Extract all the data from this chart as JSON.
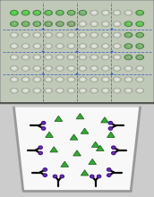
{
  "fig_width": 1.72,
  "fig_height": 2.2,
  "dpi": 100,
  "plate_bg": "#c8cfc0",
  "plate_border": "#777777",
  "well_empty_face": "#d0d5c8",
  "well_empty_edge": "#a0a89a",
  "well_empty_inner": "#e8ebe4",
  "blue_line_color": "#3355bb",
  "rows": 8,
  "cols": 12,
  "divider_color": "#666666",
  "antibody_color": "#111111",
  "antigen_color": "#33aa33",
  "antigen_edge": "#226622",
  "purple_color": "#6633aa",
  "purple_edge": "#441188",
  "well_bg": "#f0f0ee",
  "well_wall_color": "#999999",
  "bottom_bg": "#ffffff",
  "bottom_panel_bg": "#e8eee8"
}
